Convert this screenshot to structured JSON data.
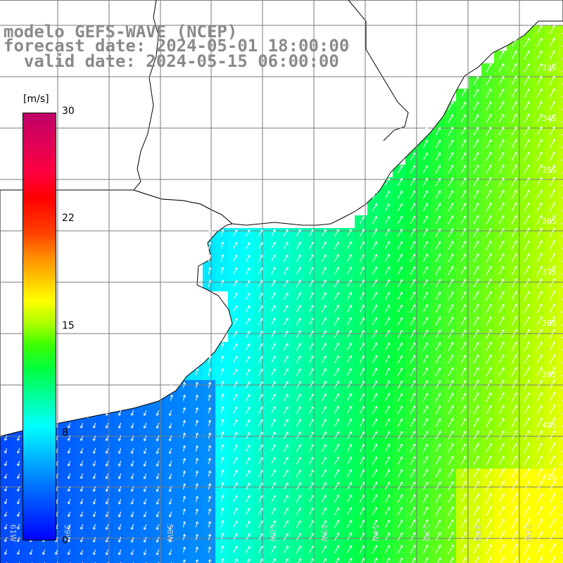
{
  "title": {
    "line1": "modelo GEFS-WAVE (NCEP)",
    "line2": "forecast date: 2024-05-01 18:00:00",
    "line3": "  valid date: 2024-05-15 06:00:00"
  },
  "colorbar": {
    "unit": "[m/s]",
    "ticks": [
      "30",
      "22",
      "15",
      "8",
      "0"
    ],
    "colors": [
      "#0000ff",
      "#0080ff",
      "#00ffff",
      "#00ff40",
      "#a0ff00",
      "#ffff00",
      "#ff9000",
      "#ff0000",
      "#c0006a"
    ]
  },
  "map": {
    "lat_labels": [
      "33S",
      "34S",
      "35S",
      "36S",
      "37S",
      "38S",
      "39S",
      "40S",
      "41S"
    ],
    "lon_labels": [
      "61W",
      "59W",
      "58W",
      "56W",
      "55W",
      "54W",
      "53W",
      "52W",
      "51W"
    ],
    "grid": true,
    "land_color": "#ffffff",
    "arrow_color": "#ffffff"
  }
}
